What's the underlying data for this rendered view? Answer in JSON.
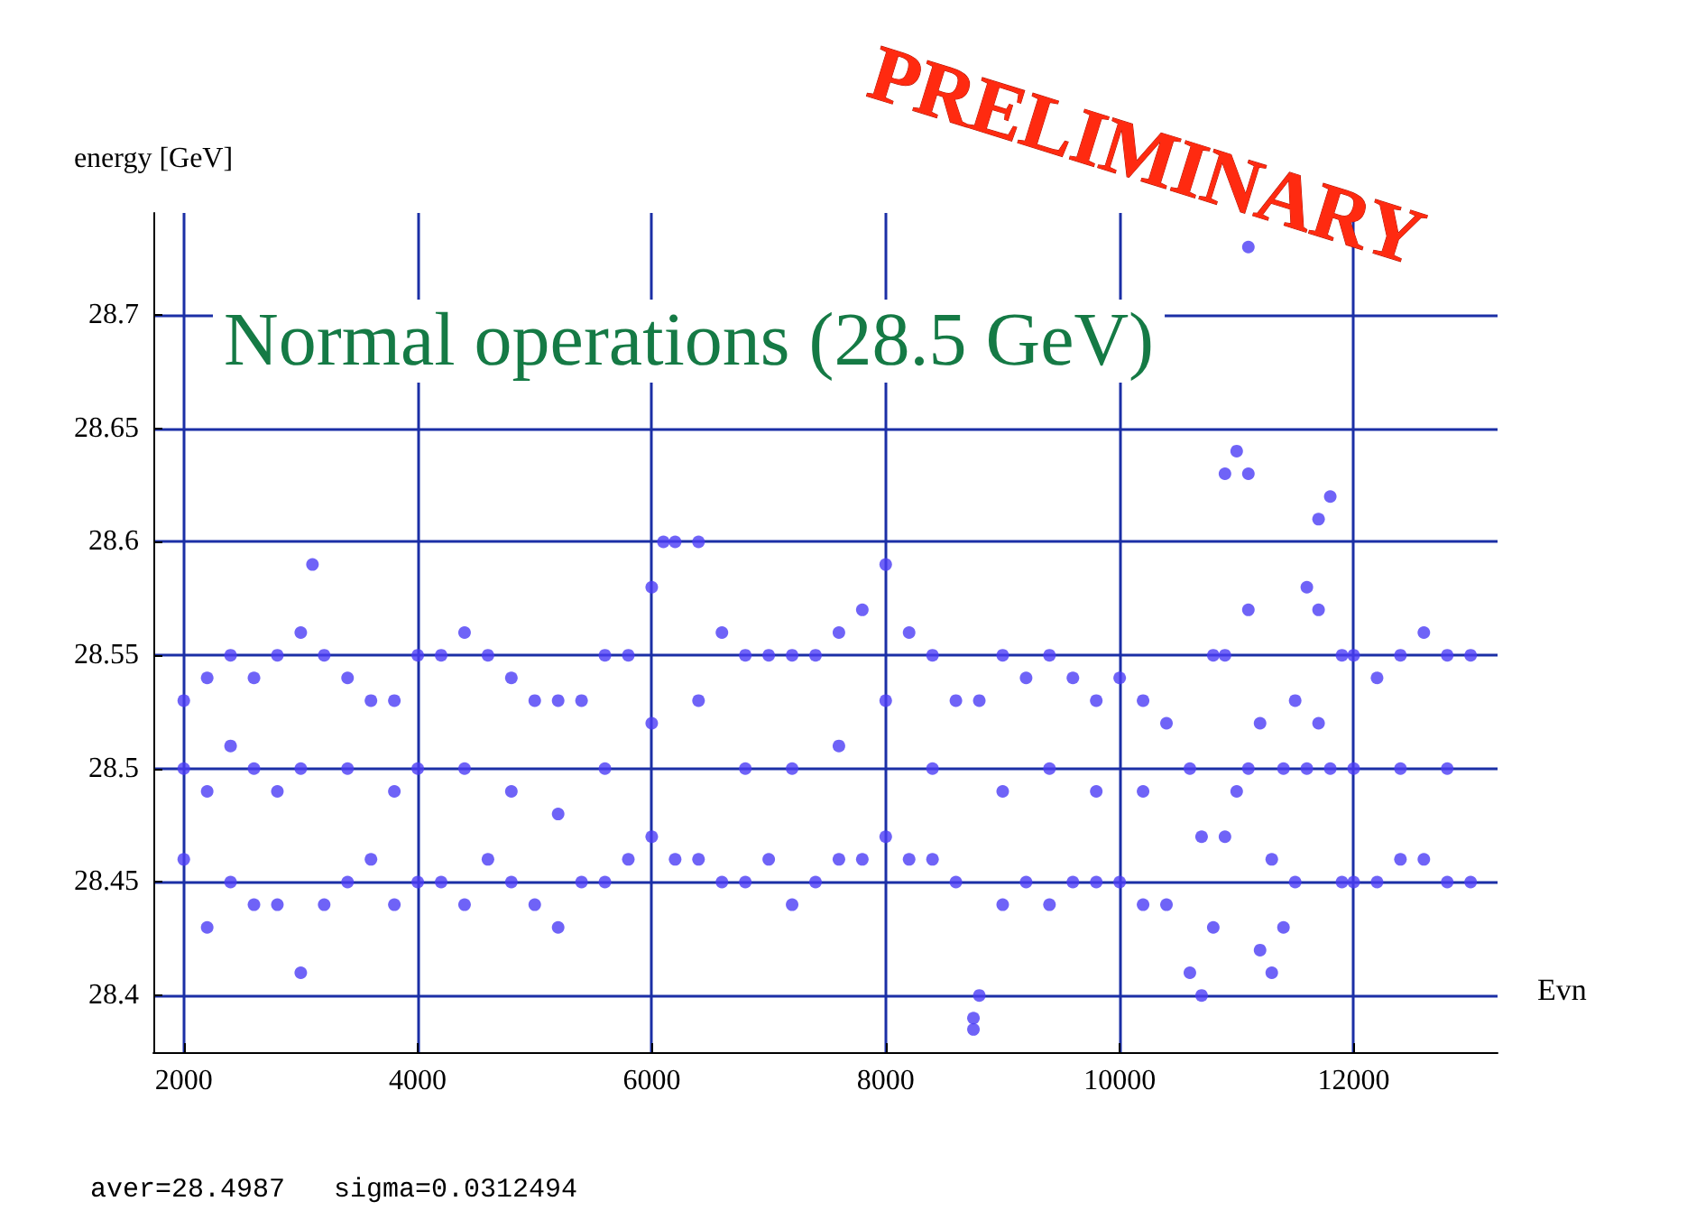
{
  "chart_data": {
    "type": "scatter",
    "ylabel": "energy [GeV]",
    "xlabel": "Evn",
    "annotations": [
      "Normal operations (28.5 GeV)",
      "aver=28.4987   sigma=0.0312494",
      "PRELIMINARY"
    ],
    "x": [
      2000,
      2000,
      2000,
      2200,
      2200,
      2200,
      2400,
      2400,
      2400,
      2600,
      2600,
      2600,
      2800,
      2800,
      2800,
      3000,
      3000,
      3000,
      3100,
      3200,
      3200,
      3400,
      3400,
      3400,
      3600,
      3600,
      3800,
      3800,
      3800,
      4000,
      4000,
      4000,
      4200,
      4200,
      4400,
      4400,
      4400,
      4600,
      4600,
      4800,
      4800,
      4800,
      5000,
      5000,
      5200,
      5200,
      5200,
      5400,
      5400,
      5600,
      5600,
      5600,
      5800,
      5800,
      6000,
      6000,
      6000,
      6100,
      6200,
      6200,
      6400,
      6400,
      6400,
      6600,
      6600,
      6800,
      6800,
      6800,
      7000,
      7000,
      7200,
      7200,
      7200,
      7400,
      7400,
      7600,
      7600,
      7600,
      7800,
      7800,
      8000,
      8000,
      8000,
      8200,
      8200,
      8400,
      8400,
      8400,
      8600,
      8600,
      8750,
      8750,
      8800,
      8800,
      9000,
      9000,
      9000,
      9200,
      9200,
      9400,
      9400,
      9400,
      9600,
      9600,
      9800,
      9800,
      9800,
      10000,
      10000,
      10200,
      10200,
      10200,
      10400,
      10400,
      10600,
      10600,
      10700,
      10700,
      10800,
      10800,
      10900,
      10900,
      10900,
      11000,
      11000,
      11100,
      11100,
      11100,
      11100,
      11200,
      11200,
      11300,
      11300,
      11400,
      11400,
      11500,
      11500,
      11600,
      11600,
      11700,
      11700,
      11700,
      11800,
      11800,
      11900,
      11900,
      12000,
      12000,
      12000,
      12200,
      12200,
      12400,
      12400,
      12400,
      12600,
      12600,
      12800,
      12800,
      12800,
      13000,
      13000
    ],
    "values": [
      28.46,
      28.5,
      28.53,
      28.43,
      28.49,
      28.54,
      28.45,
      28.51,
      28.55,
      28.44,
      28.5,
      28.54,
      28.44,
      28.49,
      28.55,
      28.41,
      28.5,
      28.56,
      28.59,
      28.44,
      28.55,
      28.45,
      28.5,
      28.54,
      28.46,
      28.53,
      28.44,
      28.49,
      28.53,
      28.45,
      28.5,
      28.55,
      28.45,
      28.55,
      28.44,
      28.5,
      28.56,
      28.46,
      28.55,
      28.45,
      28.49,
      28.54,
      28.44,
      28.53,
      28.43,
      28.48,
      28.53,
      28.45,
      28.53,
      28.45,
      28.5,
      28.55,
      28.46,
      28.55,
      28.47,
      28.52,
      28.58,
      28.6,
      28.46,
      28.6,
      28.46,
      28.53,
      28.6,
      28.45,
      28.56,
      28.45,
      28.5,
      28.55,
      28.46,
      28.55,
      28.44,
      28.5,
      28.55,
      28.45,
      28.55,
      28.46,
      28.51,
      28.56,
      28.46,
      28.57,
      28.47,
      28.53,
      28.59,
      28.46,
      28.56,
      28.46,
      28.5,
      28.55,
      28.45,
      28.53,
      28.39,
      28.385,
      28.4,
      28.53,
      28.44,
      28.49,
      28.55,
      28.45,
      28.54,
      28.44,
      28.5,
      28.55,
      28.45,
      28.54,
      28.45,
      28.49,
      28.53,
      28.45,
      28.54,
      28.44,
      28.49,
      28.53,
      28.44,
      28.52,
      28.41,
      28.5,
      28.4,
      28.47,
      28.43,
      28.55,
      28.47,
      28.55,
      28.63,
      28.49,
      28.64,
      28.5,
      28.57,
      28.63,
      28.73,
      28.42,
      28.52,
      28.41,
      28.46,
      28.43,
      28.5,
      28.45,
      28.53,
      28.5,
      28.58,
      28.52,
      28.57,
      28.61,
      28.5,
      28.62,
      28.45,
      28.55,
      28.45,
      28.5,
      28.55,
      28.45,
      28.54,
      28.46,
      28.5,
      28.55,
      28.46,
      28.56,
      28.45,
      28.5,
      28.55,
      28.45,
      28.55
    ],
    "color": "#4b3cf5",
    "marker": "circle",
    "grid": true,
    "xlim": [
      1740,
      13230
    ],
    "ylim": [
      28.375,
      28.745
    ],
    "xticks": [
      2000,
      4000,
      6000,
      8000,
      10000,
      12000
    ],
    "yticks": [
      28.4,
      28.45,
      28.5,
      28.55,
      28.6,
      28.65,
      28.7
    ]
  }
}
